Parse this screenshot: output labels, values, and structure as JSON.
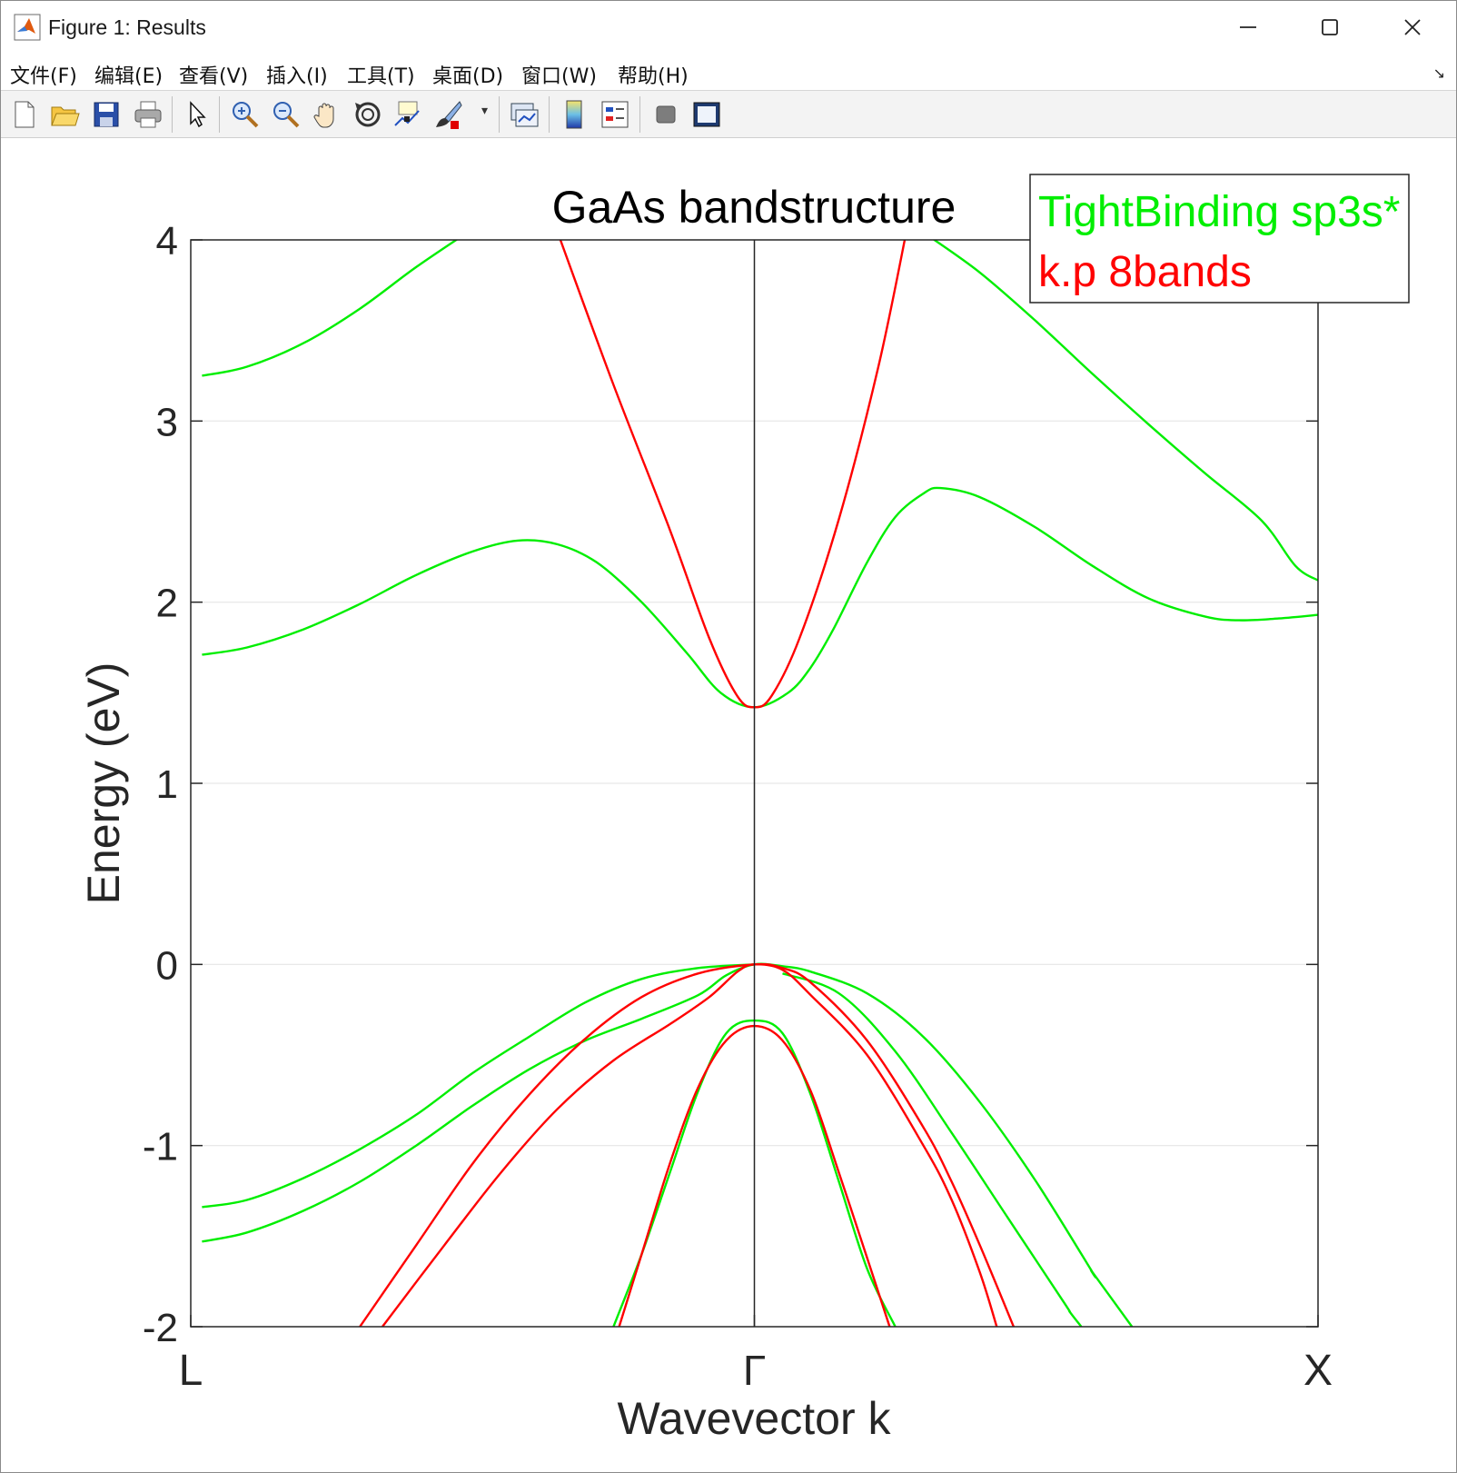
{
  "window": {
    "title": "Figure 1: Results",
    "icon": "matlab-icon",
    "controls": [
      "minimize-icon",
      "maximize-icon",
      "close-icon"
    ]
  },
  "menu": {
    "items": [
      "文件(F)",
      "编辑(E)",
      "查看(V)",
      "插入(I)",
      "工具(T)",
      "桌面(D)",
      "窗口(W)",
      "帮助(H)"
    ],
    "overflow_icon": "dock-arrow-icon"
  },
  "toolbar": {
    "buttons": [
      "new-figure-icon",
      "open-file-icon",
      "save-icon",
      "print-icon",
      "select-arrow-icon",
      "zoom-in-icon",
      "zoom-out-icon",
      "pan-hand-icon",
      "rotate-3d-icon",
      "data-cursor-icon",
      "brush-icon",
      "link-plot-icon",
      "colorbar-icon",
      "legend-icon",
      "hide-plot-tools-icon",
      "show-plot-tools-icon"
    ]
  },
  "chart_data": {
    "type": "line",
    "title": "GaAs bandstructure",
    "xlabel": "Wavevector k",
    "ylabel": "Energy (eV)",
    "xlim": [
      -1,
      1
    ],
    "ylim": [
      -2,
      4
    ],
    "xticks": [
      -1,
      0,
      1
    ],
    "xticklabels": [
      "L",
      "Γ",
      "X"
    ],
    "yticks": [
      -2,
      -1,
      0,
      1,
      2,
      3,
      4
    ],
    "yticklabels": [
      "-2",
      "-1",
      "0",
      "1",
      "2",
      "3",
      "4"
    ],
    "grid": "y",
    "legend": {
      "placement": "top-right",
      "entries": [
        {
          "label": "TightBinding sp3s*",
          "color": "#00ee00"
        },
        {
          "label": "k.p 8bands",
          "color": "#ff0000"
        }
      ]
    },
    "series": [
      {
        "group": "tb",
        "color": "#00ee00",
        "points": [
          [
            -0.98,
            3.25
          ],
          [
            -0.9,
            3.3
          ],
          [
            -0.8,
            3.43
          ],
          [
            -0.7,
            3.62
          ],
          [
            -0.6,
            3.85
          ],
          [
            -0.5,
            4.06
          ]
        ]
      },
      {
        "group": "tb",
        "color": "#00ee00",
        "points": [
          [
            -0.98,
            1.71
          ],
          [
            -0.9,
            1.75
          ],
          [
            -0.8,
            1.85
          ],
          [
            -0.7,
            1.99
          ],
          [
            -0.6,
            2.15
          ],
          [
            -0.5,
            2.28
          ],
          [
            -0.42,
            2.34
          ],
          [
            -0.35,
            2.32
          ],
          [
            -0.28,
            2.22
          ],
          [
            -0.2,
            2.0
          ],
          [
            -0.12,
            1.72
          ],
          [
            -0.06,
            1.5
          ],
          [
            0,
            1.42
          ],
          [
            0.06,
            1.5
          ],
          [
            0.1,
            1.64
          ],
          [
            0.14,
            1.85
          ],
          [
            0.2,
            2.22
          ],
          [
            0.25,
            2.47
          ],
          [
            0.3,
            2.6
          ],
          [
            0.33,
            2.63
          ],
          [
            0.4,
            2.58
          ],
          [
            0.5,
            2.41
          ],
          [
            0.6,
            2.2
          ],
          [
            0.7,
            2.02
          ],
          [
            0.8,
            1.92
          ],
          [
            0.86,
            1.9
          ],
          [
            0.93,
            1.91
          ],
          [
            1.0,
            1.93
          ]
        ]
      },
      {
        "group": "tb",
        "color": "#00ee00",
        "points": [
          [
            0.31,
            4.02
          ],
          [
            0.4,
            3.82
          ],
          [
            0.5,
            3.55
          ],
          [
            0.6,
            3.26
          ],
          [
            0.7,
            2.98
          ],
          [
            0.8,
            2.71
          ],
          [
            0.9,
            2.45
          ],
          [
            0.96,
            2.2
          ],
          [
            1.0,
            2.12
          ]
        ]
      },
      {
        "group": "tb",
        "color": "#00ee00",
        "points": [
          [
            -0.98,
            -1.34
          ],
          [
            -0.9,
            -1.3
          ],
          [
            -0.8,
            -1.18
          ],
          [
            -0.7,
            -1.02
          ],
          [
            -0.6,
            -0.83
          ],
          [
            -0.5,
            -0.6
          ],
          [
            -0.4,
            -0.4
          ],
          [
            -0.3,
            -0.21
          ],
          [
            -0.2,
            -0.08
          ],
          [
            -0.1,
            -0.02
          ],
          [
            0,
            0
          ]
        ]
      },
      {
        "group": "tb",
        "color": "#00ee00",
        "points": [
          [
            -0.98,
            -1.53
          ],
          [
            -0.9,
            -1.48
          ],
          [
            -0.8,
            -1.36
          ],
          [
            -0.7,
            -1.2
          ],
          [
            -0.6,
            -1.0
          ],
          [
            -0.5,
            -0.78
          ],
          [
            -0.4,
            -0.58
          ],
          [
            -0.3,
            -0.42
          ],
          [
            -0.2,
            -0.3
          ],
          [
            -0.1,
            -0.17
          ],
          [
            -0.05,
            -0.06
          ],
          [
            0,
            0
          ],
          [
            0.05,
            -0.01
          ],
          [
            0.1,
            -0.04
          ],
          [
            0.2,
            -0.16
          ],
          [
            0.3,
            -0.4
          ],
          [
            0.4,
            -0.76
          ],
          [
            0.5,
            -1.2
          ],
          [
            0.6,
            -1.7
          ],
          [
            0.6,
            -1.7
          ],
          [
            0.67,
            -2.0
          ]
        ]
      },
      {
        "group": "tb",
        "color": "#00ee00",
        "points": [
          [
            0.05,
            -0.05
          ],
          [
            0.15,
            -0.16
          ],
          [
            0.25,
            -0.48
          ],
          [
            0.35,
            -0.93
          ],
          [
            0.45,
            -1.4
          ],
          [
            0.55,
            -1.87
          ],
          [
            0.56,
            -1.92
          ],
          [
            0.58,
            -2.0
          ]
        ]
      },
      {
        "group": "tb",
        "color": "#00ee00",
        "points": [
          [
            -0.25,
            -2.0
          ],
          [
            -0.2,
            -1.6
          ],
          [
            -0.15,
            -1.15
          ],
          [
            -0.1,
            -0.7
          ],
          [
            -0.05,
            -0.38
          ],
          [
            0,
            -0.31
          ],
          [
            0.05,
            -0.38
          ],
          [
            0.1,
            -0.72
          ],
          [
            0.15,
            -1.2
          ],
          [
            0.2,
            -1.68
          ],
          [
            0.25,
            -2.0
          ]
        ]
      },
      {
        "group": "kp",
        "color": "#ff0000",
        "points": [
          [
            -0.35,
            4.05
          ],
          [
            -0.25,
            3.2
          ],
          [
            -0.15,
            2.4
          ],
          [
            -0.08,
            1.8
          ],
          [
            -0.03,
            1.48
          ],
          [
            0,
            1.42
          ],
          [
            0.03,
            1.48
          ],
          [
            0.08,
            1.8
          ],
          [
            0.15,
            2.46
          ],
          [
            0.22,
            3.3
          ],
          [
            0.27,
            4.05
          ]
        ]
      },
      {
        "group": "kp",
        "color": "#ff0000",
        "points": [
          [
            -0.7,
            -2.0
          ],
          [
            -0.6,
            -1.55
          ],
          [
            -0.5,
            -1.1
          ],
          [
            -0.4,
            -0.72
          ],
          [
            -0.3,
            -0.41
          ],
          [
            -0.2,
            -0.18
          ],
          [
            -0.1,
            -0.05
          ],
          [
            0,
            0
          ],
          [
            0.05,
            -0.02
          ],
          [
            0.1,
            -0.1
          ],
          [
            0.2,
            -0.42
          ],
          [
            0.3,
            -0.9
          ],
          [
            0.35,
            -1.2
          ],
          [
            0.4,
            -1.55
          ],
          [
            0.46,
            -2.0
          ]
        ]
      },
      {
        "group": "kp",
        "color": "#ff0000",
        "points": [
          [
            -0.66,
            -2.0
          ],
          [
            -0.55,
            -1.55
          ],
          [
            -0.45,
            -1.15
          ],
          [
            -0.35,
            -0.8
          ],
          [
            -0.25,
            -0.53
          ],
          [
            -0.15,
            -0.33
          ],
          [
            -0.08,
            -0.18
          ],
          [
            -0.03,
            -0.04
          ],
          [
            0,
            0
          ],
          [
            0.05,
            -0.03
          ],
          [
            0.1,
            -0.17
          ],
          [
            0.2,
            -0.5
          ],
          [
            0.3,
            -1.0
          ],
          [
            0.35,
            -1.3
          ],
          [
            0.4,
            -1.7
          ],
          [
            0.43,
            -2.0
          ]
        ]
      },
      {
        "group": "kp",
        "color": "#ff0000",
        "points": [
          [
            -0.24,
            -2.0
          ],
          [
            -0.2,
            -1.6
          ],
          [
            -0.15,
            -1.1
          ],
          [
            -0.1,
            -0.68
          ],
          [
            -0.05,
            -0.42
          ],
          [
            0,
            -0.34
          ],
          [
            0.05,
            -0.42
          ],
          [
            0.1,
            -0.7
          ],
          [
            0.15,
            -1.15
          ],
          [
            0.2,
            -1.62
          ],
          [
            0.24,
            -2.0
          ]
        ]
      }
    ]
  }
}
